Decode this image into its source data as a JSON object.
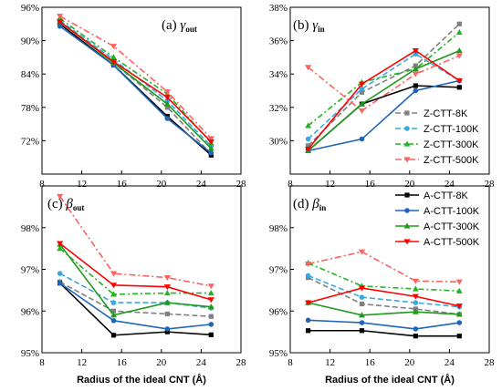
{
  "colors": {
    "8K": "#000000",
    "100K": "#1f64b8",
    "300K": "#1e9a1e",
    "500K": "#ff0000",
    "8K_dash": "#808080",
    "100K_dash": "#3aa8e0",
    "300K_dash": "#22b322",
    "500K_dash": "#ff6060"
  },
  "chart_data": [
    {
      "type": "line",
      "panel": "a",
      "title_prefix": "(a)",
      "title_symbol": "γ",
      "title_sub": "out",
      "xlim": [
        8,
        28
      ],
      "ylim": [
        66,
        96
      ],
      "xticks": [
        "8",
        "12",
        "16",
        "20",
        "24",
        "28"
      ],
      "yticks": [
        "72%",
        "78%",
        "84%",
        "90%",
        "96%"
      ],
      "x": [
        9.8,
        15.2,
        20.6,
        25.0
      ],
      "series": [
        {
          "name": "Z-CTT-8K",
          "values": [
            93.6,
            86.0,
            78.0,
            69.6
          ]
        },
        {
          "name": "Z-CTT-100K",
          "values": [
            93.6,
            86.6,
            79.2,
            71.0
          ]
        },
        {
          "name": "Z-CTT-300K",
          "values": [
            94.0,
            87.0,
            80.4,
            71.6
          ]
        },
        {
          "name": "Z-CTT-500K",
          "values": [
            94.4,
            89.0,
            80.8,
            72.4
          ]
        },
        {
          "name": "A-CTT-8K",
          "values": [
            93.0,
            85.6,
            76.4,
            69.4
          ]
        },
        {
          "name": "A-CTT-100K",
          "values": [
            92.6,
            85.6,
            76.0,
            69.8
          ]
        },
        {
          "name": "A-CTT-300K",
          "values": [
            93.4,
            86.0,
            78.6,
            70.6
          ]
        },
        {
          "name": "A-CTT-500K",
          "values": [
            93.4,
            86.2,
            79.8,
            71.8
          ]
        }
      ]
    },
    {
      "type": "line",
      "panel": "b",
      "title_prefix": "(b)",
      "title_symbol": "γ",
      "title_sub": "in",
      "xlim": [
        8,
        28
      ],
      "ylim": [
        28,
        38
      ],
      "xticks": [
        "8",
        "12",
        "16",
        "20",
        "24",
        "28"
      ],
      "yticks": [
        "30%",
        "32%",
        "34%",
        "36%",
        "38%"
      ],
      "x": [
        9.8,
        15.2,
        20.6,
        25.0
      ],
      "series": [
        {
          "name": "Z-CTT-8K",
          "values": [
            29.7,
            32.9,
            34.5,
            37.0
          ]
        },
        {
          "name": "Z-CTT-100K",
          "values": [
            30.1,
            33.1,
            35.2,
            33.6
          ]
        },
        {
          "name": "Z-CTT-300K",
          "values": [
            30.9,
            33.5,
            34.3,
            36.5
          ]
        },
        {
          "name": "Z-CTT-500K",
          "values": [
            34.4,
            31.8,
            34.0,
            35.1
          ]
        },
        {
          "name": "A-CTT-8K",
          "values": [
            29.4,
            32.2,
            33.3,
            33.2
          ]
        },
        {
          "name": "A-CTT-100K",
          "values": [
            29.4,
            30.1,
            33.0,
            33.6
          ]
        },
        {
          "name": "A-CTT-300K",
          "values": [
            29.4,
            32.2,
            34.3,
            35.4
          ]
        },
        {
          "name": "A-CTT-500K",
          "values": [
            29.5,
            33.4,
            35.4,
            33.6
          ]
        }
      ]
    },
    {
      "type": "line",
      "panel": "c",
      "title_prefix": "(c)",
      "title_symbol": "β",
      "title_sub": "out",
      "xlim": [
        8,
        28
      ],
      "ylim": [
        95,
        99
      ],
      "xticks": [
        "8",
        "12",
        "16",
        "20",
        "24",
        "28"
      ],
      "yticks": [
        "95%",
        "96%",
        "97%",
        "98%"
      ],
      "x": [
        9.8,
        15.2,
        20.6,
        25.0
      ],
      "series": [
        {
          "name": "Z-CTT-8K",
          "values": [
            96.7,
            96.0,
            95.93,
            95.87
          ]
        },
        {
          "name": "Z-CTT-100K",
          "values": [
            96.9,
            96.2,
            96.2,
            96.07
          ]
        },
        {
          "name": "Z-CTT-300K",
          "values": [
            97.5,
            96.4,
            96.43,
            96.43
          ]
        },
        {
          "name": "Z-CTT-500K",
          "values": [
            98.75,
            96.9,
            96.8,
            96.6
          ]
        },
        {
          "name": "A-CTT-8K",
          "values": [
            96.67,
            95.42,
            95.5,
            95.43
          ]
        },
        {
          "name": "A-CTT-100K",
          "values": [
            96.67,
            95.77,
            95.57,
            95.68
          ]
        },
        {
          "name": "A-CTT-300K",
          "values": [
            97.6,
            95.9,
            96.2,
            96.1
          ]
        },
        {
          "name": "A-CTT-500K",
          "values": [
            97.62,
            96.62,
            96.58,
            96.27
          ]
        }
      ]
    },
    {
      "type": "line",
      "panel": "d",
      "title_prefix": "(d)",
      "title_symbol": "β",
      "title_sub": "in",
      "xlim": [
        8,
        28
      ],
      "ylim": [
        95,
        99
      ],
      "xticks": [
        "8",
        "12",
        "16",
        "20",
        "24",
        "28"
      ],
      "yticks": [
        "95%",
        "96%",
        "97%",
        "98%"
      ],
      "x": [
        9.8,
        15.2,
        20.6,
        25.0
      ],
      "series": [
        {
          "name": "Z-CTT-8K",
          "values": [
            96.8,
            96.17,
            96.05,
            95.92
          ]
        },
        {
          "name": "Z-CTT-100K",
          "values": [
            96.85,
            96.33,
            96.2,
            96.1
          ]
        },
        {
          "name": "Z-CTT-300K",
          "values": [
            97.15,
            96.6,
            96.53,
            96.48
          ]
        },
        {
          "name": "Z-CTT-500K",
          "values": [
            97.13,
            97.42,
            96.72,
            96.7
          ]
        },
        {
          "name": "A-CTT-8K",
          "values": [
            95.53,
            95.53,
            95.4,
            95.4
          ]
        },
        {
          "name": "A-CTT-100K",
          "values": [
            95.78,
            95.72,
            95.57,
            95.72
          ]
        },
        {
          "name": "A-CTT-300K",
          "values": [
            96.2,
            95.9,
            95.98,
            95.92
          ]
        },
        {
          "name": "A-CTT-500K",
          "values": [
            96.2,
            96.55,
            96.35,
            96.12
          ]
        }
      ]
    }
  ],
  "xlabel": "Radius of the ideal CNT (Å)",
  "legend_top": [
    "Z-CTT-8K",
    "Z-CTT-100K",
    "Z-CTT-300K",
    "Z-CTT-500K"
  ],
  "legend_bottom": [
    "A-CTT-8K",
    "A-CTT-100K",
    "A-CTT-300K",
    "A-CTT-500K"
  ]
}
